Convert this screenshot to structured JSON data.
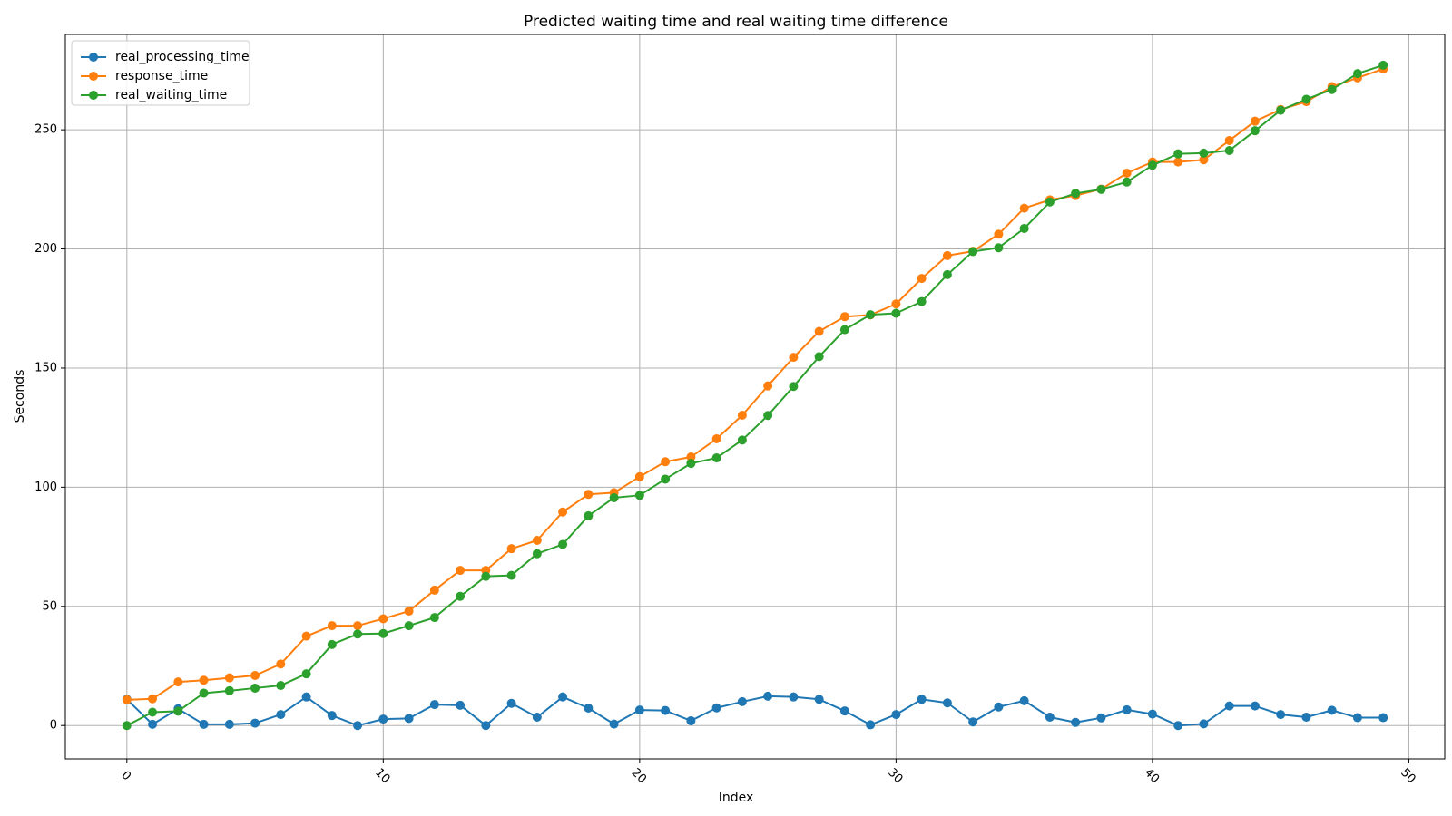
{
  "chart_data": {
    "type": "line",
    "title": "Predicted waiting time and real waiting time difference",
    "xlabel": "Index",
    "ylabel": "Seconds",
    "xlim": [
      -2.4,
      51.4
    ],
    "ylim": [
      -14,
      290
    ],
    "xticks": [
      0,
      10,
      20,
      30,
      40,
      50
    ],
    "yticks": [
      0,
      50,
      100,
      150,
      200,
      250
    ],
    "xtick_rotation": 45,
    "grid": true,
    "legend_position": "top-left",
    "x": [
      0,
      1,
      2,
      3,
      4,
      5,
      6,
      7,
      8,
      9,
      10,
      11,
      12,
      13,
      14,
      15,
      16,
      17,
      18,
      19,
      20,
      21,
      22,
      23,
      24,
      25,
      26,
      27,
      28,
      29,
      30,
      31,
      32,
      33,
      34,
      35,
      36,
      37,
      38,
      39,
      40,
      41,
      42,
      43,
      44,
      45,
      46,
      47,
      48,
      49
    ],
    "series": [
      {
        "name": "real_processing_time",
        "color": "#1f77b4",
        "values": [
          11,
          0.5,
          7,
          0.5,
          0.5,
          1,
          4.6,
          12,
          4.2,
          0,
          2.7,
          3,
          8.8,
          8.5,
          0,
          9.3,
          3.5,
          12,
          7.3,
          0.6,
          6.5,
          6.3,
          2,
          7.4,
          10,
          12.3,
          12,
          11,
          6.1,
          0.3,
          4.6,
          11,
          9.5,
          1.5,
          7.8,
          10.4,
          3.5,
          1.3,
          3.2,
          6.6,
          4.8,
          0,
          0.7,
          8.2,
          8.2,
          4.6,
          3.5,
          6.4,
          3.3,
          3.3
        ]
      },
      {
        "name": "response_time",
        "color": "#ff7f0e",
        "values": [
          10.8,
          11.2,
          18.3,
          19,
          20,
          21,
          25.8,
          37.5,
          41.9,
          41.9,
          44.8,
          48,
          56.8,
          65.1,
          65.1,
          74.2,
          77.7,
          89.6,
          97,
          97.7,
          104.4,
          110.7,
          112.7,
          120.3,
          130.2,
          142.5,
          154.5,
          165.4,
          171.6,
          172.3,
          176.9,
          187.6,
          197.2,
          199,
          206.2,
          217.1,
          220.6,
          222.4,
          225.1,
          231.8,
          236.5,
          236.5,
          237.4,
          245.5,
          253.6,
          258.5,
          261.8,
          268.1,
          271.8,
          275.5
        ]
      },
      {
        "name": "real_waiting_time",
        "color": "#2ca02c",
        "values": [
          0,
          5.6,
          6,
          13.6,
          14.6,
          15.7,
          16.8,
          21.7,
          34,
          38.4,
          38.6,
          41.9,
          45.3,
          54.2,
          62.6,
          63,
          72.1,
          76,
          88,
          95.6,
          96.6,
          103.4,
          110,
          112.3,
          119.8,
          130.1,
          142.3,
          154.8,
          166.1,
          172.4,
          173,
          177.9,
          189.2,
          198.9,
          200.5,
          208.6,
          219.7,
          223.3,
          225,
          228.1,
          235.1,
          239.9,
          240.2,
          241.3,
          249.6,
          258.2,
          262.8,
          266.9,
          273.6,
          277.1
        ]
      }
    ]
  }
}
